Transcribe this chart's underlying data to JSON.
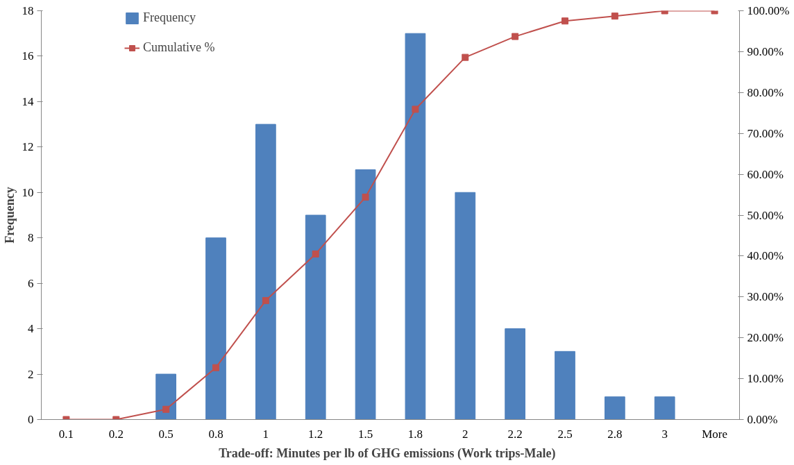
{
  "chart_data": {
    "type": "bar",
    "xlabel": "Trade-off: Minutes per  lb of GHG emissions (Work  trips-Male)",
    "ylabel": "Frequency",
    "categories": [
      "0.1",
      "0.2",
      "0.5",
      "0.8",
      "1",
      "1.2",
      "1.5",
      "1.8",
      "2",
      "2.2",
      "2.5",
      "2.8",
      "3",
      "More"
    ],
    "series": [
      {
        "name": "Frequency",
        "color": "#4f81bd",
        "values": [
          0,
          0,
          2,
          8,
          13,
          9,
          11,
          17,
          10,
          4,
          3,
          1,
          1,
          0
        ]
      },
      {
        "name": "Cumulative %",
        "type": "line",
        "axis": "y2",
        "color": "#c0504d",
        "marker": "square",
        "line_style": "solid",
        "values": [
          0,
          0,
          2.5,
          12.7,
          29.1,
          40.5,
          54.4,
          75.9,
          88.6,
          93.7,
          97.5,
          98.7,
          100,
          100
        ]
      }
    ],
    "ylim": [
      0,
      18
    ],
    "yticks": [
      0,
      2,
      4,
      6,
      8,
      10,
      12,
      14,
      16,
      18
    ],
    "y2lim": [
      0,
      100
    ],
    "y2ticks": [
      {
        "value": 0,
        "label": "0.00%"
      },
      {
        "value": 10,
        "label": "10.00%"
      },
      {
        "value": 20,
        "label": "20.00%"
      },
      {
        "value": 30,
        "label": "30.00%"
      },
      {
        "value": 40,
        "label": "40.00%"
      },
      {
        "value": 50,
        "label": "50.00%"
      },
      {
        "value": 60,
        "label": "60.00%"
      },
      {
        "value": 70,
        "label": "70.00%"
      },
      {
        "value": 80,
        "label": "80.00%"
      },
      {
        "value": 90,
        "label": "90.00%"
      },
      {
        "value": 100,
        "label": "100.00%"
      }
    ],
    "grid": false,
    "legend": "top left"
  }
}
